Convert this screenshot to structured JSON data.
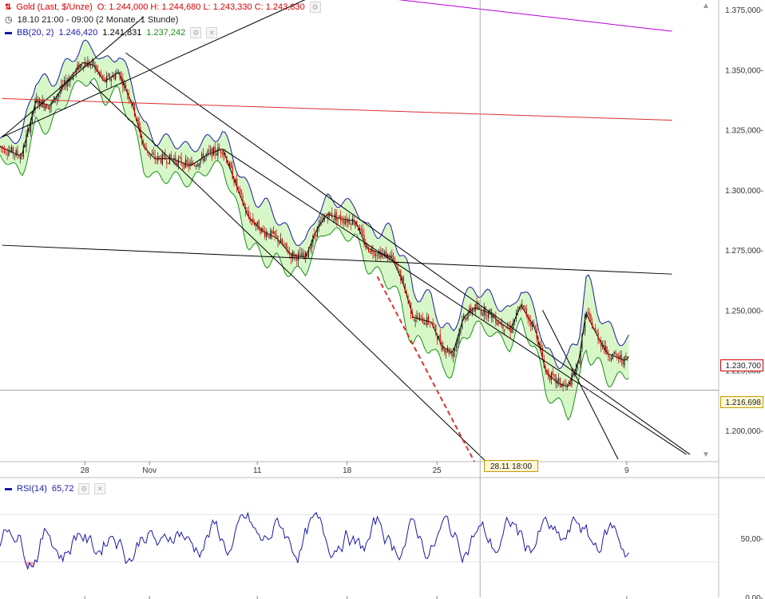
{
  "header": {
    "instrument": "Gold (Last, $/Unze)",
    "ohlc": "O: 1.244,000  H: 1.244,680  L: 1.243,330  C: 1.243,830",
    "range": "18.10 21:00 - 09:00 (2 Monate, 1 Stunde)",
    "bb_label": "BB(20, 2)",
    "bb_upper": "1.246,420",
    "bb_mid": "1.241,831",
    "bb_lower": "1.237,242",
    "rsi_label": "RSI(14)",
    "rsi_value": "65,72"
  },
  "labels": {
    "last_price": "1.230,700",
    "hline_price": "1.216,698",
    "crosshair_time": "28.11 18:00"
  },
  "colors": {
    "candle_down": "#d40000",
    "candle_up": "#1a1a1a",
    "bb_band": "#1a1aa8",
    "bb_lower": "#1a8f1a",
    "bb_fill": "#d8f7c8",
    "purple_line": "#b400d8",
    "red_line": "#e03030",
    "rsi_line": "#1a1aa8",
    "rsi_over": "#9be39b",
    "rsi_under": "#f4a8a8"
  },
  "chart_data": {
    "type": "candlestick",
    "y_axis": {
      "range": [
        1187,
        1379
      ],
      "ticks": [
        {
          "v": 1375,
          "label": "1.375,000-"
        },
        {
          "v": 1350,
          "label": "1.350,000-"
        },
        {
          "v": 1325,
          "label": "1.325,000-"
        },
        {
          "v": 1300,
          "label": "1.300,000-"
        },
        {
          "v": 1275,
          "label": "1.275,000-"
        },
        {
          "v": 1250,
          "label": "1.250,000-"
        },
        {
          "v": 1225,
          "label": "1.225,000-"
        },
        {
          "v": 1200,
          "label": "1.200,000-"
        }
      ]
    },
    "x_axis": {
      "ticks": [
        {
          "label": "28",
          "pos": 0.118
        },
        {
          "label": "Nov",
          "pos": 0.208
        },
        {
          "label": "11",
          "pos": 0.358
        },
        {
          "label": "18",
          "pos": 0.483
        },
        {
          "label": "25",
          "pos": 0.608
        },
        {
          "label": "9",
          "pos": 0.872
        }
      ]
    },
    "price_path": [
      [
        0,
        1318
      ],
      [
        0.03,
        1314
      ],
      [
        0.05,
        1337
      ],
      [
        0.07,
        1335
      ],
      [
        0.09,
        1344
      ],
      [
        0.115,
        1353
      ],
      [
        0.13,
        1352
      ],
      [
        0.145,
        1345
      ],
      [
        0.165,
        1349
      ],
      [
        0.185,
        1335
      ],
      [
        0.2,
        1318
      ],
      [
        0.215,
        1313
      ],
      [
        0.24,
        1313
      ],
      [
        0.265,
        1310
      ],
      [
        0.29,
        1315
      ],
      [
        0.31,
        1317
      ],
      [
        0.325,
        1305
      ],
      [
        0.345,
        1289
      ],
      [
        0.365,
        1283
      ],
      [
        0.385,
        1280
      ],
      [
        0.405,
        1273
      ],
      [
        0.425,
        1272
      ],
      [
        0.44,
        1283
      ],
      [
        0.455,
        1290
      ],
      [
        0.475,
        1288
      ],
      [
        0.495,
        1287
      ],
      [
        0.51,
        1276
      ],
      [
        0.525,
        1274
      ],
      [
        0.545,
        1272
      ],
      [
        0.56,
        1262
      ],
      [
        0.575,
        1247
      ],
      [
        0.6,
        1245
      ],
      [
        0.615,
        1235
      ],
      [
        0.63,
        1232
      ],
      [
        0.645,
        1247
      ],
      [
        0.66,
        1251
      ],
      [
        0.68,
        1249
      ],
      [
        0.695,
        1245
      ],
      [
        0.71,
        1242
      ],
      [
        0.725,
        1252
      ],
      [
        0.745,
        1242
      ],
      [
        0.76,
        1224
      ],
      [
        0.775,
        1220
      ],
      [
        0.79,
        1218
      ],
      [
        0.805,
        1228
      ],
      [
        0.815,
        1249
      ],
      [
        0.83,
        1240
      ],
      [
        0.845,
        1232
      ],
      [
        0.87,
        1229
      ],
      [
        0.875,
        1230.7
      ]
    ],
    "bb_width": [
      [
        0,
        4
      ],
      [
        0.05,
        12
      ],
      [
        0.1,
        8
      ],
      [
        0.2,
        10
      ],
      [
        0.3,
        7
      ],
      [
        0.36,
        14
      ],
      [
        0.42,
        7
      ],
      [
        0.5,
        8
      ],
      [
        0.56,
        14
      ],
      [
        0.62,
        10
      ],
      [
        0.7,
        8
      ],
      [
        0.77,
        10
      ],
      [
        0.82,
        16
      ],
      [
        0.875,
        8
      ]
    ],
    "trendlines": [
      {
        "name": "upper-wedge",
        "color": "#000",
        "from": [
          0.003,
          1322
        ],
        "to": [
          0.49,
          1388
        ]
      },
      {
        "name": "channel-top",
        "color": "#000",
        "from": [
          0.003,
          1322
        ],
        "to": [
          0.2,
          1372
        ]
      },
      {
        "name": "channel-a",
        "color": "#000",
        "from": [
          0.175,
          1357
        ],
        "to": [
          0.96,
          1190
        ]
      },
      {
        "name": "channel-b",
        "color": "#000",
        "from": [
          0.125,
          1345
        ],
        "to": [
          0.68,
          1186
        ]
      },
      {
        "name": "channel-c",
        "color": "#000",
        "from": [
          0.31,
          1317
        ],
        "to": [
          0.955,
          1190
        ]
      },
      {
        "name": "horizontal-black",
        "color": "#000",
        "from": [
          0.003,
          1277
        ],
        "to": [
          0.935,
          1265
        ]
      },
      {
        "name": "red",
        "color": "#e03030",
        "from": [
          0.003,
          1338
        ],
        "to": [
          0.935,
          1329
        ]
      },
      {
        "name": "purple",
        "color": "#b400d8",
        "from": [
          0.53,
          1380
        ],
        "to": [
          0.935,
          1366
        ]
      },
      {
        "name": "red-dashed",
        "color": "#e03030",
        "dashed": true,
        "from": [
          0.525,
          1264
        ],
        "to": [
          0.66,
          1187
        ]
      },
      {
        "name": "last-leg",
        "color": "#000",
        "from": [
          0.755,
          1250
        ],
        "to": [
          0.86,
          1188
        ]
      }
    ],
    "hline": 1216.698,
    "crosshair_x": 0.668,
    "rsi": {
      "range": [
        0,
        100
      ],
      "ticks": [
        {
          "v": 50,
          "label": "50,00-"
        },
        {
          "v": 0,
          "label": "0,00-"
        }
      ],
      "levels": [
        30,
        70
      ]
    }
  }
}
